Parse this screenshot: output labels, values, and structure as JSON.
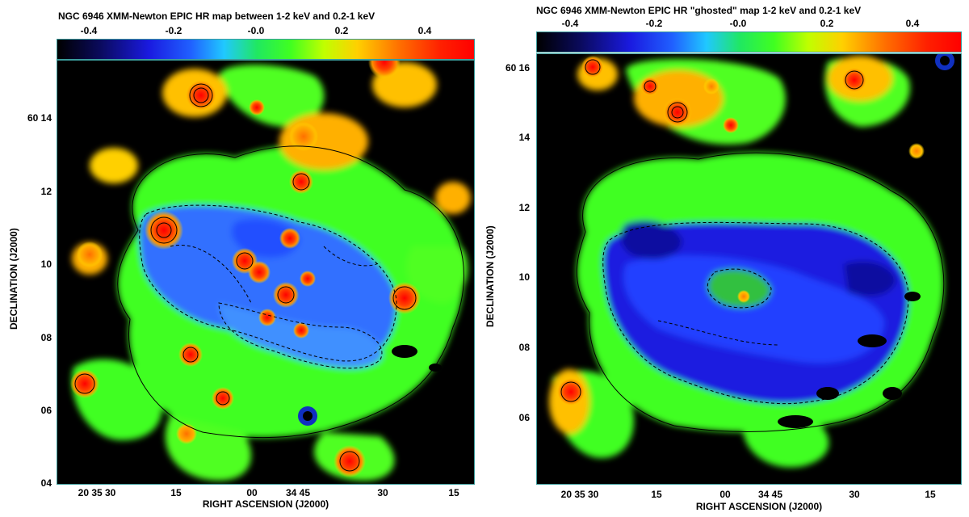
{
  "left": {
    "title": "NGC 6946 XMM-Newton EPIC HR map between 1-2 keV and 0.2-1 keV",
    "colorbar_ticks": [
      "-0.4",
      "-0.2",
      "-0.0",
      "0.2",
      "0.4"
    ],
    "y_ticks": [
      "60 14",
      "12",
      "10",
      "08",
      "06",
      "04"
    ],
    "x_ticks": [
      "20 35 30",
      "15",
      "00",
      "34 45",
      "30",
      "15"
    ],
    "xlabel": "RIGHT ASCENSION (J2000)",
    "ylabel": "DECLINATION (J2000)"
  },
  "right": {
    "title": "NGC 6946 XMM-Newton EPIC HR \"ghosted\" map 1-2 keV and 0.2-1 keV",
    "colorbar_ticks": [
      "-0.4",
      "-0.2",
      "-0.0",
      "0.2",
      "0.4"
    ],
    "y_ticks": [
      "60 16",
      "14",
      "12",
      "10",
      "08",
      "06"
    ],
    "x_ticks": [
      "20 35 30",
      "15",
      "00",
      "34 45",
      "30",
      "15"
    ],
    "xlabel": "RIGHT ASCENSION (J2000)",
    "ylabel": "DECLINATION (J2000)"
  },
  "colors": {
    "background": "#000000",
    "low": "#1a1ae0",
    "mid": "#40ff20",
    "high": "#ff2000",
    "frame": "#3a9b9b"
  }
}
